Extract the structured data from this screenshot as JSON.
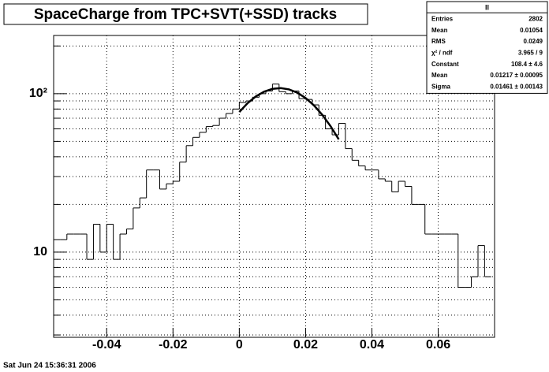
{
  "chart_data": {
    "type": "histogram",
    "title": "SpaceCharge from TPC+SVT(+SSD) tracks",
    "bins": [
      -0.056,
      -0.054,
      -0.052,
      -0.05,
      -0.048,
      -0.046,
      -0.044,
      -0.042,
      -0.04,
      -0.038,
      -0.036,
      -0.034,
      -0.032,
      -0.03,
      -0.028,
      -0.026,
      -0.024,
      -0.022,
      -0.02,
      -0.018,
      -0.016,
      -0.014,
      -0.012,
      -0.01,
      -0.008,
      -0.006,
      -0.004,
      -0.002,
      0,
      0.002,
      0.004,
      0.006,
      0.008,
      0.01,
      0.012,
      0.014,
      0.016,
      0.018,
      0.02,
      0.022,
      0.024,
      0.026,
      0.028,
      0.03,
      0.032,
      0.034,
      0.036,
      0.038,
      0.04,
      0.042,
      0.044,
      0.046,
      0.048,
      0.05,
      0.052,
      0.054,
      0.056,
      0.058,
      0.06,
      0.062,
      0.064,
      0.066,
      0.068,
      0.07,
      0.072,
      0.074,
      0.076
    ],
    "values": [
      12,
      12,
      13,
      13,
      13,
      9,
      15,
      10,
      15,
      9,
      13,
      14,
      19,
      22,
      33,
      33,
      25,
      27,
      28,
      37,
      47,
      53,
      57,
      62,
      63,
      70,
      75,
      80,
      88,
      90,
      95,
      100,
      104,
      115,
      103,
      100,
      104,
      93,
      92,
      85,
      73,
      60,
      55,
      65,
      45,
      38,
      35,
      33,
      33,
      29,
      28,
      24,
      28,
      26,
      20,
      20,
      13,
      13,
      13,
      13,
      13,
      6,
      6,
      7,
      11,
      7
    ],
    "color": "#000000",
    "fit": {
      "color": "#000000",
      "x": [
        0,
        0.0025,
        0.005,
        0.0075,
        0.01,
        0.0125,
        0.015,
        0.0175,
        0.02,
        0.0225,
        0.025,
        0.0275,
        0.03
      ],
      "values": [
        76.6,
        87.1,
        96.1,
        103.0,
        107.2,
        108.4,
        106.4,
        101.4,
        93.9,
        84.4,
        73.7,
        62.5,
        51.5
      ]
    },
    "xlim": [
      -0.056,
      0.077
    ],
    "xticks": [
      -0.04,
      -0.02,
      0,
      0.02,
      0.04,
      0.06
    ],
    "ylim": [
      2.9,
      233
    ],
    "log_y": true,
    "yticks": [
      10,
      {
        "value": 100,
        "label": "10²"
      }
    ],
    "yminorticks": [
      3,
      4,
      5,
      6,
      7,
      8,
      9,
      20,
      30,
      40,
      50,
      60,
      70,
      80,
      90,
      200
    ],
    "grid": true,
    "stats_box": {
      "title": "ll",
      "rows": [
        [
          "Entries",
          "2802"
        ],
        [
          "Mean",
          "0.01054"
        ],
        [
          "RMS",
          "0.0249"
        ],
        [
          "χ² / ndf",
          "3.965 / 9"
        ],
        [
          "Constant",
          "108.4 ± 4.6"
        ],
        [
          "Mean",
          "0.01217 ± 0.00095"
        ],
        [
          "Sigma",
          "0.01461 ± 0.00143"
        ]
      ]
    },
    "timestamp": "Sat Jun 24 15:36:31 2006"
  }
}
